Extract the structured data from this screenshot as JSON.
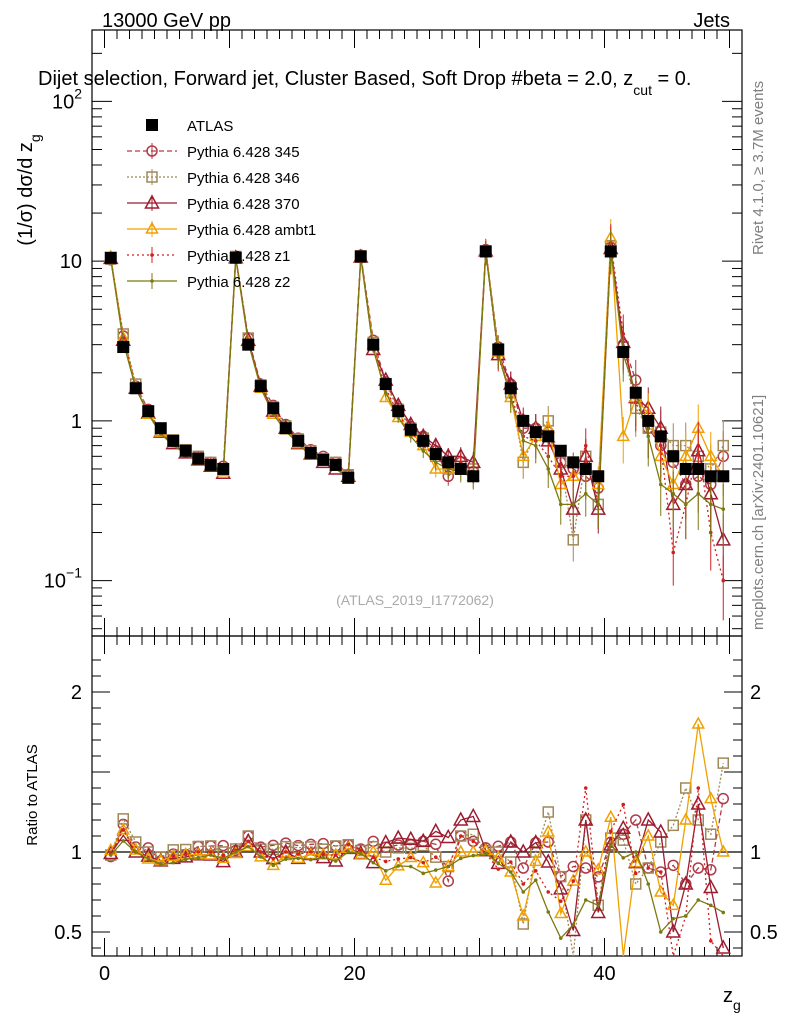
{
  "header": {
    "energy": "13000 GeV pp",
    "category": "Jets",
    "selection": "Dijet selection, Forward jet, Cluster Based, Soft Drop #beta = 2.0, z",
    "selection_sub": "cut",
    "selection_tail": " = 0.",
    "side_rivet": "Rivet 4.1.0, ≥ 3.7M events",
    "side_mcplots": "mcplots.cern.ch [arXiv:2401.10621]",
    "watermark": "(ATLAS_2019_I1772062)"
  },
  "colors": {
    "ATLAS": "#000000",
    "345": "#b03a48",
    "346": "#a08858",
    "370": "#9b1b30",
    "ambt1": "#f0a000",
    "z1": "#d02020",
    "z2": "#7a7a10"
  },
  "chart_data": [
    {
      "type": "scatter",
      "panel": "main",
      "title": "Dijet selection, Forward jet, Cluster Based, Soft Drop beta = 2.0, z_cut = 0.",
      "ylabel": "(1/σ) dσ/d z",
      "ylabel_sub": "g",
      "xlabel": "",
      "xlim": [
        -1,
        51
      ],
      "ylim": [
        0.045,
        280
      ],
      "yscale": "log",
      "y_tick_labels": [
        "10",
        "1",
        "10",
        "10"
      ],
      "y_tick_values": [
        10,
        1,
        0.1,
        100
      ],
      "y_tick_exp": [
        "",
        "",
        "−1",
        "2"
      ],
      "legend_position": "top-left",
      "x": [
        0.5,
        1.5,
        2.5,
        3.5,
        4.5,
        5.5,
        6.5,
        7.5,
        8.5,
        9.5,
        10.5,
        11.5,
        12.5,
        13.5,
        14.5,
        15.5,
        16.5,
        17.5,
        18.5,
        19.5,
        20.5,
        21.5,
        22.5,
        23.5,
        24.5,
        25.5,
        26.5,
        27.5,
        28.5,
        29.5,
        30.5,
        31.5,
        32.5,
        33.5,
        34.5,
        35.5,
        36.5,
        37.5,
        38.5,
        39.5,
        40.5,
        41.5,
        42.5,
        43.5,
        44.5,
        45.5,
        46.5,
        47.5,
        48.5,
        49.5
      ],
      "series": [
        {
          "name": "ATLAS",
          "marker": "square",
          "values": [
            10.5,
            2.9,
            1.6,
            1.15,
            0.9,
            0.75,
            0.65,
            0.58,
            0.53,
            0.5,
            10.5,
            3.0,
            1.65,
            1.2,
            0.9,
            0.75,
            0.63,
            0.57,
            0.53,
            0.44,
            10.7,
            3.0,
            1.7,
            1.15,
            0.88,
            0.75,
            0.62,
            0.55,
            0.5,
            0.45,
            11.5,
            2.8,
            1.6,
            1.0,
            0.85,
            0.8,
            0.65,
            0.55,
            0.5,
            0.45,
            11.5,
            2.7,
            1.5,
            1.0,
            0.8,
            0.6,
            0.5,
            0.5,
            0.45,
            0.45
          ]
        },
        {
          "name": "Pythia 6.428 345",
          "marker": "circle",
          "values": [
            10.2,
            3.4,
            1.65,
            1.18,
            0.85,
            0.74,
            0.64,
            0.6,
            0.55,
            0.52,
            10.6,
            3.3,
            1.7,
            1.25,
            0.95,
            0.78,
            0.66,
            0.6,
            0.55,
            0.46,
            10.9,
            3.2,
            1.75,
            1.2,
            0.92,
            0.8,
            0.65,
            0.45,
            0.55,
            0.48,
            11.8,
            2.9,
            1.7,
            0.9,
            0.9,
            0.85,
            0.55,
            0.5,
            0.45,
            0.38,
            12.2,
            3.0,
            1.8,
            0.9,
            0.7,
            0.55,
            0.4,
            0.45,
            0.4,
            0.6
          ]
        },
        {
          "name": "Pythia 6.428 346",
          "marker": "square-open",
          "values": [
            10.3,
            3.5,
            1.7,
            1.15,
            0.87,
            0.76,
            0.66,
            0.6,
            0.55,
            0.5,
            10.7,
            3.3,
            1.68,
            1.22,
            0.93,
            0.77,
            0.65,
            0.58,
            0.55,
            0.46,
            10.8,
            3.1,
            1.7,
            1.18,
            0.9,
            0.78,
            0.6,
            0.5,
            0.55,
            0.5,
            11.6,
            2.8,
            1.5,
            0.55,
            0.85,
            1.0,
            0.55,
            0.18,
            0.6,
            0.3,
            12.5,
            2.9,
            1.2,
            0.9,
            0.85,
            0.7,
            0.7,
            0.6,
            0.5,
            0.7
          ]
        },
        {
          "name": "Pythia 6.428 370",
          "marker": "triangle-open",
          "values": [
            10.4,
            3.2,
            1.6,
            1.12,
            0.85,
            0.72,
            0.63,
            0.57,
            0.52,
            0.47,
            10.5,
            3.2,
            1.65,
            1.15,
            0.9,
            0.72,
            0.62,
            0.55,
            0.5,
            0.45,
            10.6,
            2.8,
            1.8,
            1.25,
            0.95,
            0.8,
            0.7,
            0.6,
            0.6,
            0.55,
            11.6,
            2.6,
            1.7,
            1.0,
            0.9,
            0.75,
            0.5,
            0.28,
            0.6,
            0.28,
            12.0,
            3.1,
            1.4,
            1.2,
            0.9,
            0.3,
            0.4,
            0.65,
            0.35,
            0.18
          ]
        },
        {
          "name": "Pythia 6.428 ambt1",
          "marker": "triangle",
          "values": [
            10.6,
            3.3,
            1.62,
            1.1,
            0.85,
            0.73,
            0.64,
            0.57,
            0.52,
            0.48,
            10.4,
            3.1,
            1.6,
            1.1,
            0.88,
            0.72,
            0.62,
            0.56,
            0.52,
            0.45,
            10.5,
            3.0,
            1.4,
            1.05,
            0.85,
            0.7,
            0.5,
            0.5,
            0.5,
            0.45,
            11.6,
            2.7,
            1.4,
            0.6,
            0.8,
            0.9,
            0.4,
            0.45,
            0.5,
            0.4,
            14.0,
            0.8,
            1.4,
            1.1,
            0.6,
            0.4,
            0.6,
            0.9,
            0.6,
            0.45
          ]
        },
        {
          "name": "Pythia 6.428 z1",
          "marker": "dot",
          "values": [
            10.4,
            3.3,
            1.6,
            1.1,
            0.83,
            0.73,
            0.64,
            0.58,
            0.53,
            0.49,
            10.6,
            3.2,
            1.65,
            1.15,
            0.9,
            0.74,
            0.63,
            0.56,
            0.52,
            0.46,
            10.8,
            2.9,
            1.6,
            1.1,
            0.85,
            0.7,
            0.6,
            0.5,
            0.55,
            0.48,
            11.4,
            2.5,
            1.5,
            0.8,
            0.75,
            0.6,
            0.45,
            0.45,
            0.7,
            0.3,
            13.0,
            3.5,
            1.3,
            0.9,
            0.7,
            0.15,
            0.3,
            0.7,
            0.2,
            0.1
          ]
        },
        {
          "name": "Pythia 6.428 z2",
          "marker": "dot",
          "values": [
            10.3,
            3.1,
            1.6,
            1.1,
            0.83,
            0.7,
            0.62,
            0.56,
            0.52,
            0.48,
            10.5,
            3.1,
            1.6,
            1.1,
            0.86,
            0.72,
            0.6,
            0.55,
            0.5,
            0.44,
            10.6,
            2.8,
            1.5,
            1.05,
            0.8,
            0.65,
            0.55,
            0.5,
            0.48,
            0.44,
            11.4,
            2.6,
            1.4,
            0.75,
            0.7,
            0.5,
            0.3,
            0.3,
            0.35,
            0.3,
            12.0,
            2.6,
            1.5,
            0.8,
            0.4,
            0.35,
            0.3,
            0.35,
            0.3,
            0.28
          ]
        }
      ]
    },
    {
      "type": "scatter",
      "panel": "ratio",
      "title": "",
      "ylabel": "Ratio to ATLAS",
      "xlabel": "z",
      "xlabel_sub": "g",
      "xlim": [
        -1,
        51
      ],
      "ylim": [
        0.35,
        2.35
      ],
      "reference": 1,
      "x_tick_labels": [
        "0",
        "20",
        "40"
      ],
      "x_tick_values": [
        0,
        20,
        40
      ],
      "y_tick_labels": [
        "0.5",
        "1",
        "2"
      ],
      "y_tick_values": [
        0.5,
        1,
        2
      ]
    }
  ]
}
